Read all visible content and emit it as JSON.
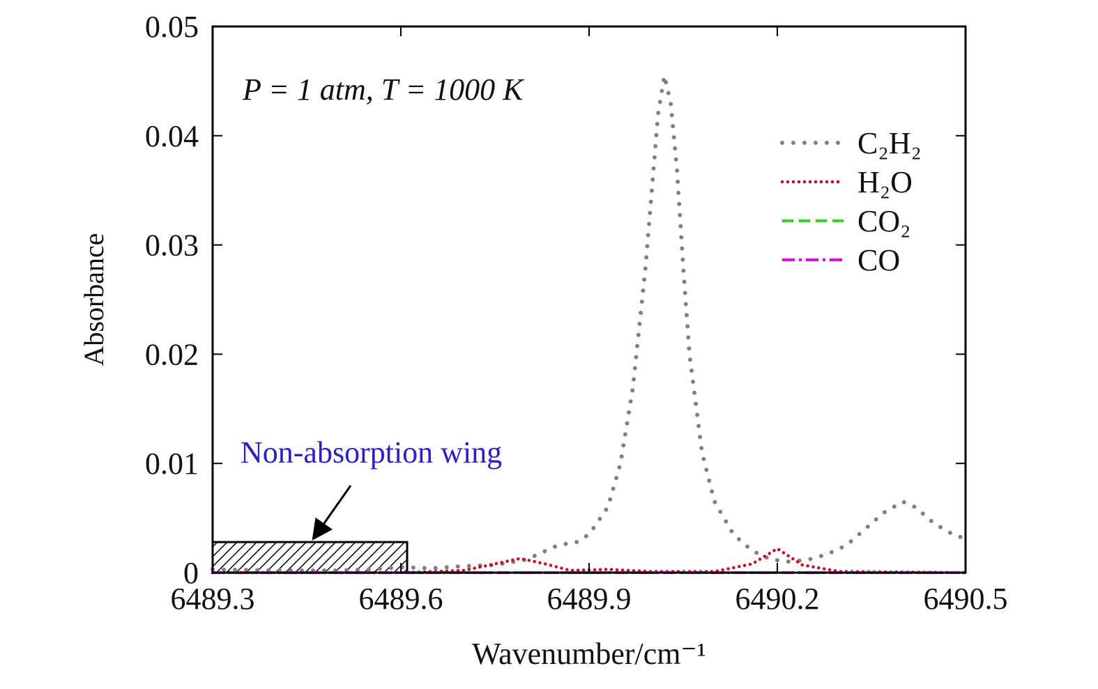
{
  "chart_data": {
    "type": "line",
    "xlabel": "Wavenumber/cm⁻¹",
    "ylabel": "Absorbance",
    "annotations": [
      "P = 1 atm, T = 1000 K",
      "Non-absorption wing"
    ],
    "shaded_region": {
      "x": [
        6489.3,
        6489.61
      ],
      "y": [
        0,
        0.0028
      ]
    },
    "xlim": [
      6489.3,
      6490.5
    ],
    "xticks": [
      6489.3,
      6489.6,
      6489.9,
      6490.2,
      6490.5
    ],
    "ylim": [
      0,
      0.05
    ],
    "yticks": [
      0,
      0.01,
      0.02,
      0.03,
      0.04,
      0.05
    ],
    "legend": "upper right",
    "series": [
      {
        "name": "C₂H₂",
        "color": "#808080",
        "x": [
          6489.3,
          6489.4,
          6489.5,
          6489.55,
          6489.6,
          6489.65,
          6489.7,
          6489.75,
          6489.8,
          6489.85,
          6489.88,
          6489.9,
          6489.93,
          6489.95,
          6489.97,
          6489.99,
          6490.0,
          6490.01,
          6490.02,
          6490.03,
          6490.04,
          6490.05,
          6490.06,
          6490.08,
          6490.1,
          6490.13,
          6490.16,
          6490.19,
          6490.22,
          6490.25,
          6490.28,
          6490.31,
          6490.34,
          6490.37,
          6490.4,
          6490.42,
          6490.45,
          6490.48,
          6490.5
        ],
        "values": [
          0.0003,
          0.0002,
          0.0002,
          0.0003,
          0.0005,
          0.0004,
          0.0006,
          0.0007,
          0.0012,
          0.0025,
          0.0028,
          0.0035,
          0.006,
          0.01,
          0.017,
          0.028,
          0.035,
          0.042,
          0.0455,
          0.043,
          0.037,
          0.028,
          0.02,
          0.011,
          0.0065,
          0.0035,
          0.002,
          0.0012,
          0.001,
          0.0012,
          0.0017,
          0.0025,
          0.004,
          0.0055,
          0.0065,
          0.006,
          0.0045,
          0.0035,
          0.0031
        ]
      },
      {
        "name": "H₂O",
        "color": "#d0021b",
        "x": [
          6489.3,
          6489.6,
          6489.7,
          6489.75,
          6489.79,
          6489.83,
          6489.87,
          6489.93,
          6490.0,
          6490.1,
          6490.16,
          6490.2,
          6490.24,
          6490.3,
          6490.5
        ],
        "values": [
          0,
          0,
          0.0002,
          0.0008,
          0.0013,
          0.0008,
          0.0002,
          0.0003,
          0.0001,
          0.0001,
          0.0008,
          0.0022,
          0.0007,
          0.0001,
          0
        ]
      },
      {
        "name": "CO₂",
        "color": "#22dd22",
        "x": [
          6489.3,
          6490.5
        ],
        "values": [
          0,
          0
        ]
      },
      {
        "name": "CO",
        "color": "#ee00ee",
        "x": [
          6489.3,
          6490.5
        ],
        "values": [
          0,
          0
        ]
      }
    ]
  }
}
